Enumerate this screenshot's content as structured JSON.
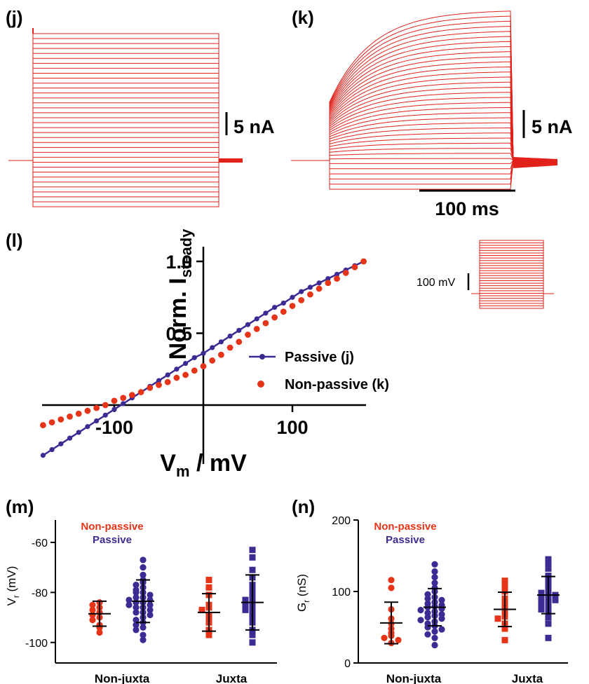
{
  "panels": {
    "j": {
      "label": "(j)",
      "scalebar": "5 nA"
    },
    "k": {
      "label": "(k)",
      "scalebar": "5 nA",
      "time_scalebar": "100 ms"
    },
    "protocol": {
      "scalebar": "100 mV"
    }
  },
  "colors": {
    "passive": "#3d2b93",
    "nonpassive": "#e63419",
    "trace": "#e0221b"
  },
  "chart_data": [
    {
      "id": "l",
      "panel_label": "(l)",
      "type": "scatter",
      "xlabel_main": "V",
      "xlabel_sub": "m",
      "xlabel_rest": " / mV",
      "ylabel_main": "Norm. I",
      "ylabel_sub": "steady",
      "xlim": [
        -180,
        180
      ],
      "ylim": [
        -0.35,
        1.1
      ],
      "x_ticks": [
        {
          "value": -100,
          "label": "-100"
        },
        {
          "value": 100,
          "label": "100"
        }
      ],
      "y_ticks": [
        {
          "value": 0.5,
          "label": "0.5"
        },
        {
          "value": 1.0,
          "label": "1.0"
        }
      ],
      "x": [
        -180,
        -170,
        -160,
        -150,
        -140,
        -130,
        -120,
        -110,
        -100,
        -90,
        -80,
        -70,
        -60,
        -50,
        -40,
        -30,
        -20,
        -10,
        0,
        10,
        20,
        30,
        40,
        50,
        60,
        70,
        80,
        90,
        100,
        110,
        120,
        130,
        140,
        150,
        160,
        170,
        180
      ],
      "series": [
        {
          "name": "Passive (j)",
          "style": "line-dots",
          "values": [
            -0.35,
            -0.31,
            -0.27,
            -0.23,
            -0.19,
            -0.15,
            -0.11,
            -0.07,
            -0.03,
            0.01,
            0.05,
            0.09,
            0.13,
            0.17,
            0.21,
            0.25,
            0.29,
            0.33,
            0.36,
            0.4,
            0.44,
            0.48,
            0.52,
            0.56,
            0.6,
            0.64,
            0.68,
            0.71,
            0.75,
            0.79,
            0.82,
            0.85,
            0.88,
            0.91,
            0.94,
            0.97,
            1.0
          ]
        },
        {
          "name": "Non-passive (k)",
          "style": "dots",
          "values": [
            -0.14,
            -0.12,
            -0.1,
            -0.08,
            -0.06,
            -0.04,
            -0.02,
            0.0,
            0.03,
            0.05,
            0.07,
            0.09,
            0.12,
            0.14,
            0.16,
            0.19,
            0.21,
            0.24,
            0.27,
            0.31,
            0.35,
            0.4,
            0.44,
            0.49,
            0.53,
            0.57,
            0.61,
            0.65,
            0.69,
            0.73,
            0.77,
            0.81,
            0.85,
            0.88,
            0.92,
            0.96,
            1.0
          ]
        }
      ]
    },
    {
      "id": "m",
      "panel_label": "(m)",
      "type": "scatter",
      "ylabel_main": "V",
      "ylabel_sub": "r",
      "ylabel_rest": " (mV)",
      "ylim": [
        -105,
        -55
      ],
      "y_ticks": [
        -60,
        -80,
        -100
      ],
      "categories": [
        "Non-juxta",
        "Juxta"
      ],
      "legend": [
        {
          "name": "Non-passive",
          "color": "#e63419"
        },
        {
          "name": "Passive",
          "color": "#3d2b93"
        }
      ],
      "groups": [
        {
          "category": "Non-juxta",
          "series": "Non-passive",
          "mean": -88.5,
          "sd": 5,
          "values": [
            -84,
            -86,
            -87,
            -88,
            -89,
            -90,
            -91,
            -93,
            -94,
            -96,
            -85
          ]
        },
        {
          "category": "Non-juxta",
          "series": "Passive",
          "mean": -83.5,
          "sd": 8.5,
          "values": [
            -67,
            -70,
            -73,
            -75,
            -76,
            -77,
            -78,
            -79,
            -80,
            -80,
            -81,
            -82,
            -82,
            -83,
            -83,
            -84,
            -84,
            -85,
            -85,
            -86,
            -86,
            -87,
            -88,
            -88,
            -89,
            -90,
            -91,
            -92,
            -93,
            -94,
            -95,
            -97,
            -99
          ]
        },
        {
          "category": "Juxta",
          "series": "Non-passive",
          "mean": -88,
          "sd": 7.5,
          "values": [
            -75,
            -78,
            -81,
            -85,
            -86,
            -87,
            -89,
            -90,
            -92,
            -95,
            -97
          ]
        },
        {
          "category": "Juxta",
          "series": "Passive",
          "mean": -84,
          "sd": 11,
          "values": [
            -63,
            -66,
            -71,
            -74,
            -77,
            -78,
            -80,
            -82,
            -83,
            -84,
            -85,
            -86,
            -87,
            -88,
            -90,
            -92,
            -95,
            -97,
            -100
          ]
        }
      ]
    },
    {
      "id": "n",
      "panel_label": "(n)",
      "type": "scatter",
      "ylabel_main": "G",
      "ylabel_sub": "r",
      "ylabel_rest": " (nS)",
      "ylim": [
        0,
        200
      ],
      "y_ticks": [
        0,
        100,
        200
      ],
      "categories": [
        "Non-juxta",
        "Juxta"
      ],
      "legend": [
        {
          "name": "Non-passive",
          "color": "#e63419"
        },
        {
          "name": "Passive",
          "color": "#3d2b93"
        }
      ],
      "groups": [
        {
          "category": "Non-juxta",
          "series": "Non-passive",
          "mean": 56,
          "sd": 29,
          "values": [
            116,
            105,
            75,
            62,
            55,
            48,
            42,
            38,
            35,
            32,
            28
          ]
        },
        {
          "category": "Non-juxta",
          "series": "Passive",
          "mean": 78,
          "sd": 26,
          "values": [
            138,
            128,
            120,
            112,
            105,
            100,
            96,
            92,
            90,
            88,
            85,
            83,
            81,
            79,
            78,
            76,
            74,
            72,
            70,
            68,
            66,
            64,
            62,
            60,
            58,
            55,
            52,
            50,
            47,
            44,
            40,
            35,
            25
          ]
        },
        {
          "category": "Juxta",
          "series": "Non-passive",
          "mean": 75,
          "sd": 24,
          "values": [
            115,
            108,
            100,
            90,
            82,
            75,
            70,
            65,
            62,
            55,
            48,
            32
          ]
        },
        {
          "category": "Juxta",
          "series": "Passive",
          "mean": 95,
          "sd": 26,
          "values": [
            145,
            140,
            132,
            122,
            115,
            110,
            105,
            100,
            98,
            95,
            92,
            90,
            88,
            85,
            82,
            78,
            75,
            70,
            64,
            55,
            35
          ]
        }
      ]
    }
  ]
}
